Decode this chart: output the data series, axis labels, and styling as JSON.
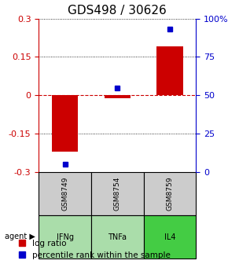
{
  "title": "GDS498 / 30626",
  "samples": [
    "GSM8749",
    "GSM8754",
    "GSM8759"
  ],
  "agents": [
    "IFNg",
    "TNFa",
    "IL4"
  ],
  "log_ratios": [
    -0.22,
    -0.012,
    0.19
  ],
  "percentile_ranks": [
    5.0,
    55.0,
    93.0
  ],
  "ylim_left": [
    -0.3,
    0.3
  ],
  "ylim_right": [
    0,
    100
  ],
  "yticks_left": [
    -0.3,
    -0.15,
    0.0,
    0.15,
    0.3
  ],
  "yticks_right": [
    0,
    25,
    50,
    75,
    100
  ],
  "ytick_labels_left": [
    "-0.3",
    "-0.15",
    "0",
    "0.15",
    "0.3"
  ],
  "ytick_labels_right": [
    "0",
    "25",
    "50",
    "75",
    "100%"
  ],
  "bar_color": "#cc0000",
  "dot_color": "#0000cc",
  "grid_color": "#000000",
  "zero_line_color": "#cc0000",
  "sample_box_color": "#cccccc",
  "agent_box_colors": [
    "#aaddaa",
    "#aaddaa",
    "#44cc44"
  ],
  "agent_box_border": "#000000",
  "bar_width": 0.5,
  "title_fontsize": 11,
  "tick_fontsize": 8,
  "label_fontsize": 8,
  "legend_fontsize": 7.5
}
